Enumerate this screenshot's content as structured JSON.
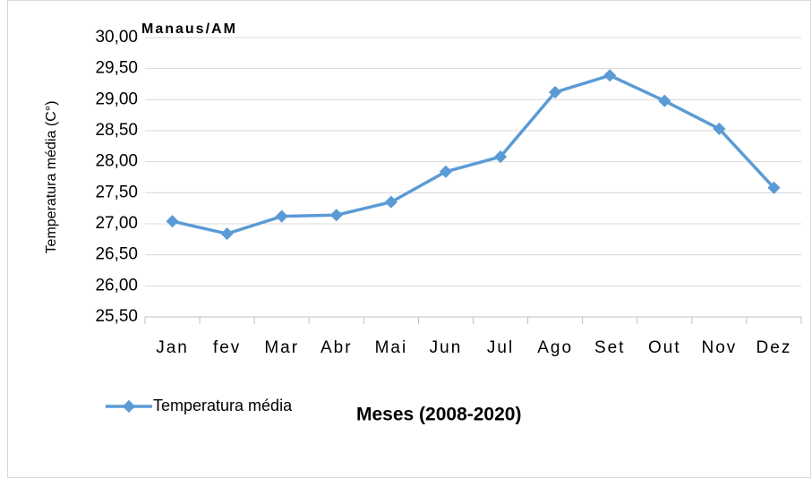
{
  "chart_data": {
    "type": "line",
    "title": "Manaus/AM",
    "y_label": "Temperatura média (C°)",
    "x_label": "Meses (2008-2020)",
    "categories": [
      "Jan",
      "fev",
      "Mar",
      "Abr",
      "Mai",
      "Jun",
      "Jul",
      "Ago",
      "Set",
      "Out",
      "Nov",
      "Dez"
    ],
    "series": [
      {
        "name": "Temperatura média",
        "color": "#5b9bd5",
        "values": [
          27.04,
          26.84,
          27.12,
          27.14,
          27.35,
          27.84,
          28.08,
          29.12,
          29.39,
          28.98,
          28.53,
          27.58
        ]
      }
    ],
    "ylim": [
      25.5,
      30
    ],
    "yticks": [
      {
        "value": 25.5,
        "label": "25,50"
      },
      {
        "value": 26,
        "label": "26,00"
      },
      {
        "value": 26.5,
        "label": "26,50"
      },
      {
        "value": 27,
        "label": "27,00"
      },
      {
        "value": 27.5,
        "label": "27,50"
      },
      {
        "value": 28,
        "label": "28,00"
      },
      {
        "value": 28.5,
        "label": "28,50"
      },
      {
        "value": 29,
        "label": "29,00"
      },
      {
        "value": 29.5,
        "label": "29,50"
      },
      {
        "value": 30,
        "label": "30,00"
      }
    ],
    "grid": true,
    "legend": "bottom-left"
  }
}
